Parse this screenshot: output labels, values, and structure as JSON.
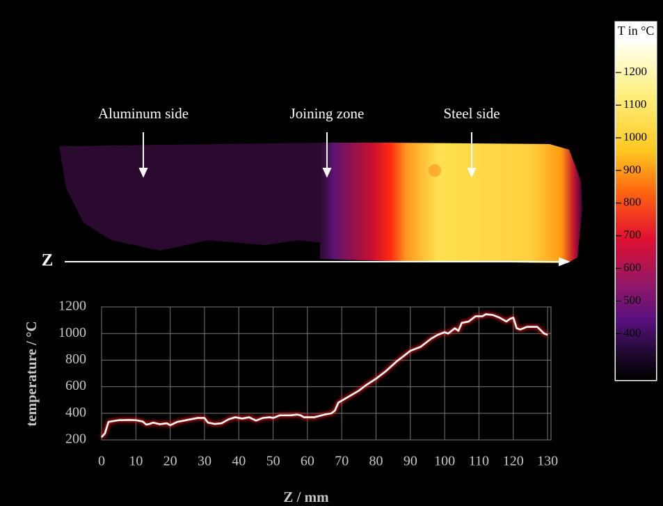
{
  "image": {
    "labels": [
      "Aluminum side",
      "Joining zone",
      "Steel side"
    ],
    "axis_label": "Z"
  },
  "colorbar": {
    "title": "T in °C",
    "lim": [
      260,
      1290
    ],
    "ticks": [
      400,
      500,
      600,
      700,
      800,
      900,
      1000,
      1100,
      1200
    ]
  },
  "chart_data": {
    "type": "line",
    "color": "#ffffff",
    "x": [
      0,
      1,
      2,
      3,
      5,
      8,
      10,
      12,
      13,
      14,
      15,
      17,
      19,
      20,
      22,
      25,
      28,
      30,
      31,
      33,
      35,
      37,
      39,
      41,
      43,
      45,
      47,
      49,
      50,
      52,
      55,
      57,
      58,
      59,
      62,
      65,
      67,
      68,
      69,
      71,
      73,
      75,
      77,
      80,
      83,
      86,
      88,
      90,
      93,
      96,
      98,
      100,
      101,
      103,
      104,
      105,
      107,
      109,
      111,
      112,
      114,
      116,
      118,
      119,
      120,
      121,
      122,
      124,
      127,
      129,
      130
    ],
    "values": [
      220,
      250,
      335,
      340,
      348,
      350,
      348,
      338,
      315,
      320,
      330,
      318,
      325,
      310,
      335,
      350,
      365,
      365,
      330,
      320,
      325,
      355,
      370,
      360,
      370,
      345,
      365,
      370,
      365,
      385,
      385,
      390,
      385,
      370,
      370,
      390,
      400,
      420,
      480,
      510,
      540,
      570,
      610,
      660,
      720,
      790,
      830,
      870,
      900,
      960,
      990,
      1010,
      1000,
      1040,
      1020,
      1080,
      1090,
      1130,
      1130,
      1145,
      1140,
      1120,
      1090,
      1110,
      1120,
      1040,
      1030,
      1050,
      1050,
      1000,
      990
    ],
    "xlim": [
      0,
      131
    ],
    "ylim": [
      200,
      1200
    ],
    "xticks": [
      0,
      10,
      20,
      30,
      40,
      50,
      60,
      70,
      80,
      90,
      100,
      110,
      120,
      130
    ],
    "yticks": [
      200,
      400,
      600,
      800,
      1000,
      1200
    ],
    "xlabel": "Z / mm",
    "ylabel": "temperature / °C",
    "grid": true
  }
}
